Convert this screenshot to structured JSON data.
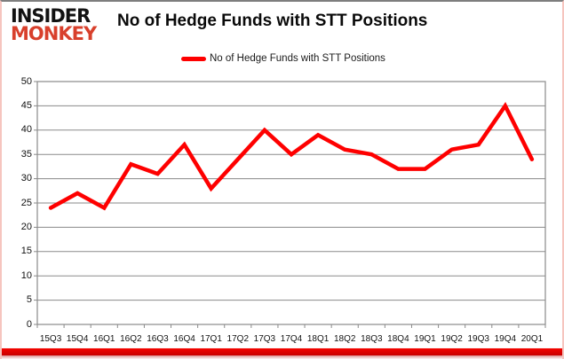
{
  "header": {
    "logo_line1": "INSIDER",
    "logo_line2": "MONKEY",
    "title": "No of Hedge Funds with STT Positions"
  },
  "legend": {
    "label": "No of Hedge Funds with STT Positions",
    "color": "#fe0000"
  },
  "colors": {
    "logo_black": "#121212",
    "logo_red": "#d8402c",
    "line_red": "#fe0000",
    "gridline_gray": "#8a8a8a",
    "bottom_bar_red": "#f40400",
    "frame_pink_border": "#f6c5bf",
    "frame_top_border": "#7e7e7e"
  },
  "chart_data": {
    "type": "line",
    "title": "No of Hedge Funds with STT Positions",
    "categories": [
      "15Q3",
      "15Q4",
      "16Q1",
      "16Q2",
      "16Q3",
      "16Q4",
      "17Q1",
      "17Q2",
      "17Q3",
      "17Q4",
      "18Q1",
      "18Q2",
      "18Q3",
      "18Q4",
      "19Q1",
      "19Q2",
      "19Q3",
      "19Q4",
      "20Q1"
    ],
    "series": [
      {
        "name": "No of Hedge Funds with STT Positions",
        "values": [
          24,
          27,
          24,
          33,
          31,
          37,
          28,
          34,
          40,
          35,
          39,
          36,
          35,
          32,
          32,
          36,
          37,
          45,
          34
        ]
      }
    ],
    "xlabel": "",
    "ylabel": "",
    "ylim": [
      0,
      50
    ],
    "ytick_step": 5,
    "grid": true,
    "legend_position": "top-center",
    "line_color": "#fe0000"
  }
}
